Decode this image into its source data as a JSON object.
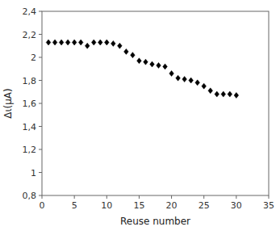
{
  "chart_data": {
    "type": "scatter",
    "xlabel": "Reuse number",
    "ylabel": "Δι(μA)",
    "x": [
      1,
      2,
      3,
      4,
      5,
      6,
      7,
      8,
      9,
      10,
      11,
      12,
      13,
      14,
      15,
      16,
      17,
      18,
      19,
      20,
      21,
      22,
      23,
      24,
      25,
      26,
      27,
      28,
      29,
      30
    ],
    "values": [
      2.13,
      2.13,
      2.13,
      2.13,
      2.13,
      2.13,
      2.1,
      2.13,
      2.13,
      2.13,
      2.12,
      2.1,
      2.05,
      2.02,
      1.97,
      1.96,
      1.94,
      1.93,
      1.92,
      1.86,
      1.82,
      1.81,
      1.8,
      1.78,
      1.75,
      1.71,
      1.68,
      1.68,
      1.68,
      1.67
    ],
    "marker": "diamond",
    "color": "black",
    "xlim": [
      0,
      35
    ],
    "ylim": [
      0.8,
      2.4
    ],
    "xticks": [
      0,
      5,
      10,
      15,
      20,
      25,
      30,
      35
    ],
    "yticks": [
      {
        "value": 0.8,
        "label": "0,8"
      },
      1,
      {
        "value": 1.2,
        "label": "1,2"
      },
      {
        "value": 1.4,
        "label": "1,4"
      },
      {
        "value": 1.6,
        "label": "1,6"
      },
      {
        "value": 1.8,
        "label": "1,8"
      },
      2,
      {
        "value": 2.2,
        "label": "2,2"
      },
      {
        "value": 2.4,
        "label": "2,4"
      }
    ],
    "grid": false
  }
}
